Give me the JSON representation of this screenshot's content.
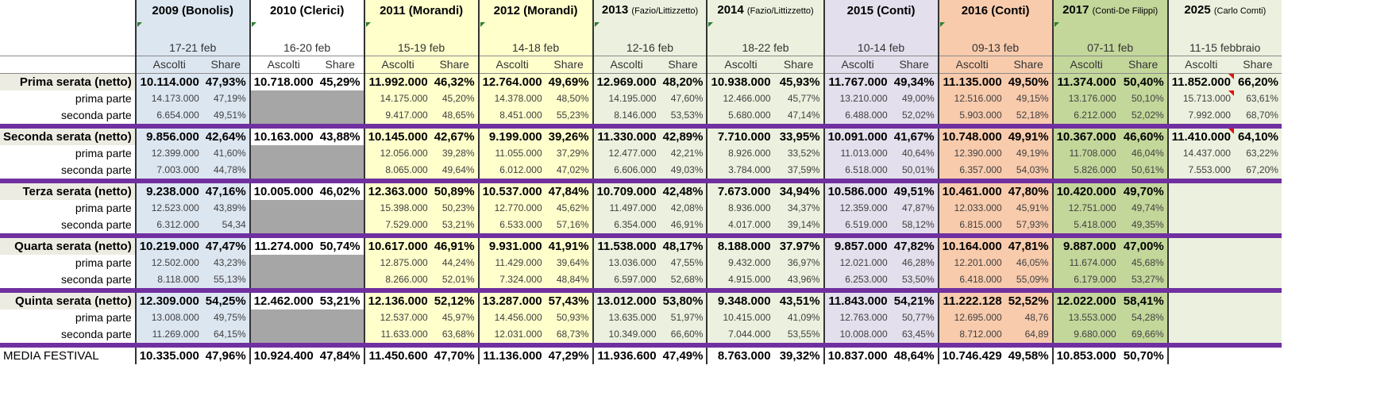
{
  "columns": [
    {
      "id": "2009",
      "title": "2009 (Bonolis)",
      "sub": "",
      "dates": "17-21 feb"
    },
    {
      "id": "2010",
      "title": "2010 (Clerici)",
      "sub": "",
      "dates": "16-20 feb"
    },
    {
      "id": "2011",
      "title": "2011 (Morandi)",
      "sub": "",
      "dates": "15-19 feb"
    },
    {
      "id": "2012",
      "title": "2012 (Morandi)",
      "sub": "",
      "dates": "14-18 feb"
    },
    {
      "id": "2013",
      "title": "2013",
      "sub": "(Fazio/Littizzetto)",
      "dates": "12-16 feb"
    },
    {
      "id": "2014",
      "title": "2014",
      "sub": "(Fazio/Littizzetto)",
      "dates": "18-22 feb"
    },
    {
      "id": "2015",
      "title": "2015 (Conti)",
      "sub": "",
      "dates": "10-14 feb"
    },
    {
      "id": "2016",
      "title": "2016 (Conti)",
      "sub": "",
      "dates": "09-13 feb"
    },
    {
      "id": "2017",
      "title": "2017",
      "sub": "(Conti-De Filippi)",
      "dates": "07-11 feb"
    },
    {
      "id": "2025",
      "title": "2025",
      "sub": "(Carlo Comti)",
      "dates": "11-15 febbraio"
    }
  ],
  "subheaders": {
    "ascolti": "Ascolti",
    "share": "Share"
  },
  "groups": [
    {
      "main": {
        "label": "Prima serata (netto)",
        "values": [
          [
            "10.114.000",
            "47,93%"
          ],
          [
            "10.718.000",
            "45,29%"
          ],
          [
            "11.992.000",
            "46,32%"
          ],
          [
            "12.764.000",
            "49,69%"
          ],
          [
            "12.969.000",
            "48,20%"
          ],
          [
            "10.938.000",
            "45,93%"
          ],
          [
            "11.767.000",
            "49,34%"
          ],
          [
            "11.135.000",
            "49,50%"
          ],
          [
            "11.374.000",
            "50,40%"
          ],
          [
            "11.852.000",
            "66,20%"
          ]
        ]
      },
      "p1": {
        "label": "prima parte",
        "values": [
          [
            "14.173.000",
            "47,19%"
          ],
          null,
          [
            "14.175.000",
            "45,20%"
          ],
          [
            "14.378.000",
            "48,50%"
          ],
          [
            "14.195.000",
            "47,60%"
          ],
          [
            "12.466.000",
            "45,77%"
          ],
          [
            "13.210.000",
            "49,00%"
          ],
          [
            "12.516.000",
            "49,15%"
          ],
          [
            "13.176.000",
            "50,10%"
          ],
          [
            "15.713.000",
            "63,61%"
          ]
        ]
      },
      "p2": {
        "label": "seconda parte",
        "values": [
          [
            "6.654.000",
            "49,51%"
          ],
          null,
          [
            "9.417.000",
            "48,65%"
          ],
          [
            "8.451.000",
            "55,23%"
          ],
          [
            "8.146.000",
            "53,53%"
          ],
          [
            "5.680.000",
            "47,14%"
          ],
          [
            "6.488.000",
            "52,02%"
          ],
          [
            "5.903.000",
            "52,18%"
          ],
          [
            "6.212.000",
            "52,02%"
          ],
          [
            "7.992.000",
            "68,70%"
          ]
        ]
      }
    },
    {
      "main": {
        "label": "Seconda serata (netto)",
        "values": [
          [
            "9.856.000",
            "42,64%"
          ],
          [
            "10.163.000",
            "43,88%"
          ],
          [
            "10.145.000",
            "42,67%"
          ],
          [
            "9.199.000",
            "39,26%"
          ],
          [
            "11.330.000",
            "42,89%"
          ],
          [
            "7.710.000",
            "33,95%"
          ],
          [
            "10.091.000",
            "41,67%"
          ],
          [
            "10.748.000",
            "49,91%"
          ],
          [
            "10.367.000",
            "46,60%"
          ],
          [
            "11.410.000",
            "64,10%"
          ]
        ]
      },
      "p1": {
        "label": "prima parte",
        "values": [
          [
            "12.399.000",
            "41,60%"
          ],
          null,
          [
            "12.056.000",
            "39,28%"
          ],
          [
            "11.055.000",
            "37,29%"
          ],
          [
            "12.477.000",
            "42,21%"
          ],
          [
            "8.926.000",
            "33,52%"
          ],
          [
            "11.013.000",
            "40,64%"
          ],
          [
            "12.390.000",
            "49,19%"
          ],
          [
            "11.708.000",
            "46,04%"
          ],
          [
            "14.437.000",
            "63,22%"
          ]
        ]
      },
      "p2": {
        "label": "seconda parte",
        "values": [
          [
            "7.003.000",
            "44,78%"
          ],
          null,
          [
            "8.065.000",
            "49,64%"
          ],
          [
            "6.012.000",
            "47,02%"
          ],
          [
            "6.606.000",
            "49,03%"
          ],
          [
            "3.784.000",
            "37,59%"
          ],
          [
            "6.518.000",
            "50,01%"
          ],
          [
            "6.357.000",
            "54,03%"
          ],
          [
            "5.826.000",
            "50,61%"
          ],
          [
            "7.553.000",
            "67,20%"
          ]
        ]
      }
    },
    {
      "main": {
        "label": "Terza serata (netto)",
        "values": [
          [
            "9.238.000",
            "47,16%"
          ],
          [
            "10.005.000",
            "46,02%"
          ],
          [
            "12.363.000",
            "50,89%"
          ],
          [
            "10.537.000",
            "47,84%"
          ],
          [
            "10.709.000",
            "42,48%"
          ],
          [
            "7.673.000",
            "34,94%"
          ],
          [
            "10.586.000",
            "49,51%"
          ],
          [
            "10.461.000",
            "47,80%"
          ],
          [
            "10.420.000",
            "49,70%"
          ],
          null
        ]
      },
      "p1": {
        "label": "prima parte",
        "values": [
          [
            "12.523.000",
            "43,89%"
          ],
          null,
          [
            "15.398.000",
            "50,23%"
          ],
          [
            "12.770.000",
            "45,62%"
          ],
          [
            "11.497.000",
            "42,08%"
          ],
          [
            "8.936.000",
            "34,37%"
          ],
          [
            "12.359.000",
            "47,87%"
          ],
          [
            "12.033.000",
            "45,91%"
          ],
          [
            "12.751.000",
            "49,74%"
          ],
          null
        ]
      },
      "p2": {
        "label": "seconda parte",
        "values": [
          [
            "6.312.000",
            "54,34"
          ],
          null,
          [
            "7.529.000",
            "53,21%"
          ],
          [
            "6.533.000",
            "57,16%"
          ],
          [
            "6.354.000",
            "46,91%"
          ],
          [
            "4.017.000",
            "39,14%"
          ],
          [
            "6.519.000",
            "58,12%"
          ],
          [
            "6.815.000",
            "57,93%"
          ],
          [
            "5.418.000",
            "49,35%"
          ],
          null
        ]
      }
    },
    {
      "main": {
        "label": "Quarta serata (netto)",
        "values": [
          [
            "10.219.000",
            "47,47%"
          ],
          [
            "11.274.000",
            "50,74%"
          ],
          [
            "10.617.000",
            "46,91%"
          ],
          [
            "9.931.000",
            "41,91%"
          ],
          [
            "11.538.000",
            "48,17%"
          ],
          [
            "8.188.000",
            "37.97%"
          ],
          [
            "9.857.000",
            "47,82%"
          ],
          [
            "10.164.000",
            "47,81%"
          ],
          [
            "9.887.000",
            "47,00%"
          ],
          null
        ]
      },
      "p1": {
        "label": "prima parte",
        "values": [
          [
            "12.502.000",
            "43,23%"
          ],
          null,
          [
            "12.875.000",
            "44,24%"
          ],
          [
            "11.429.000",
            "39,64%"
          ],
          [
            "13.036.000",
            "47,55%"
          ],
          [
            "9.432.000",
            "36,97%"
          ],
          [
            "12.021.000",
            "46,28%"
          ],
          [
            "12.201.000",
            "46,05%"
          ],
          [
            "11.674.000",
            "45,68%"
          ],
          null
        ]
      },
      "p2": {
        "label": "seconda parte",
        "values": [
          [
            "8.118.000",
            "55,13%"
          ],
          null,
          [
            "8.266.000",
            "52,01%"
          ],
          [
            "7.324.000",
            "48,84%"
          ],
          [
            "6.597.000",
            "52,68%"
          ],
          [
            "4.915.000",
            "43,96%"
          ],
          [
            "6.253.000",
            "53,50%"
          ],
          [
            "6.418.000",
            "55,09%"
          ],
          [
            "6.179.000",
            "53,27%"
          ],
          null
        ]
      }
    },
    {
      "main": {
        "label": "Quinta serata (netto)",
        "values": [
          [
            "12.309.000",
            "54,25%"
          ],
          [
            "12.462.000",
            "53,21%"
          ],
          [
            "12.136.000",
            "52,12%"
          ],
          [
            "13.287.000",
            "57,43%"
          ],
          [
            "13.012.000",
            "53,80%"
          ],
          [
            "9.348.000",
            "43,51%"
          ],
          [
            "11.843.000",
            "54,21%"
          ],
          [
            "11.222.128",
            "52,52%"
          ],
          [
            "12.022.000",
            "58,41%"
          ],
          null
        ]
      },
      "p1": {
        "label": "prima parte",
        "values": [
          [
            "13.008.000",
            "49,75%"
          ],
          null,
          [
            "12.537.000",
            "45,97%"
          ],
          [
            "14.456.000",
            "50,93%"
          ],
          [
            "13.635.000",
            "51,97%"
          ],
          [
            "10.415.000",
            "41,09%"
          ],
          [
            "12.763.000",
            "50,77%"
          ],
          [
            "12.695.000",
            "48,76"
          ],
          [
            "13.553.000",
            "54,28%"
          ],
          null
        ]
      },
      "p2": {
        "label": "seconda parte",
        "values": [
          [
            "11.269.000",
            "64,15%"
          ],
          null,
          [
            "11.633.000",
            "63,68%"
          ],
          [
            "12.031.000",
            "68,73%"
          ],
          [
            "10.349.000",
            "66,60%"
          ],
          [
            "7.044.000",
            "53,55%"
          ],
          [
            "10.008.000",
            "63,45%"
          ],
          [
            "8.712.000",
            "64,89"
          ],
          [
            "9.680.000",
            "69,66%"
          ],
          null
        ]
      }
    }
  ],
  "media": {
    "label": "MEDIA FESTIVAL",
    "values": [
      [
        "10.335.000",
        "47,96%"
      ],
      [
        "10.924.400",
        "47,84%"
      ],
      [
        "11.450.600",
        "47,70%"
      ],
      [
        "11.136.000",
        "47,29%"
      ],
      [
        "11.936.600",
        "47,49%"
      ],
      [
        "8.763.000",
        "39,32%"
      ],
      [
        "10.837.000",
        "48,64%"
      ],
      [
        "10.746.429",
        "49,58%"
      ],
      [
        "10.853.000",
        "50,70%"
      ],
      null
    ]
  }
}
